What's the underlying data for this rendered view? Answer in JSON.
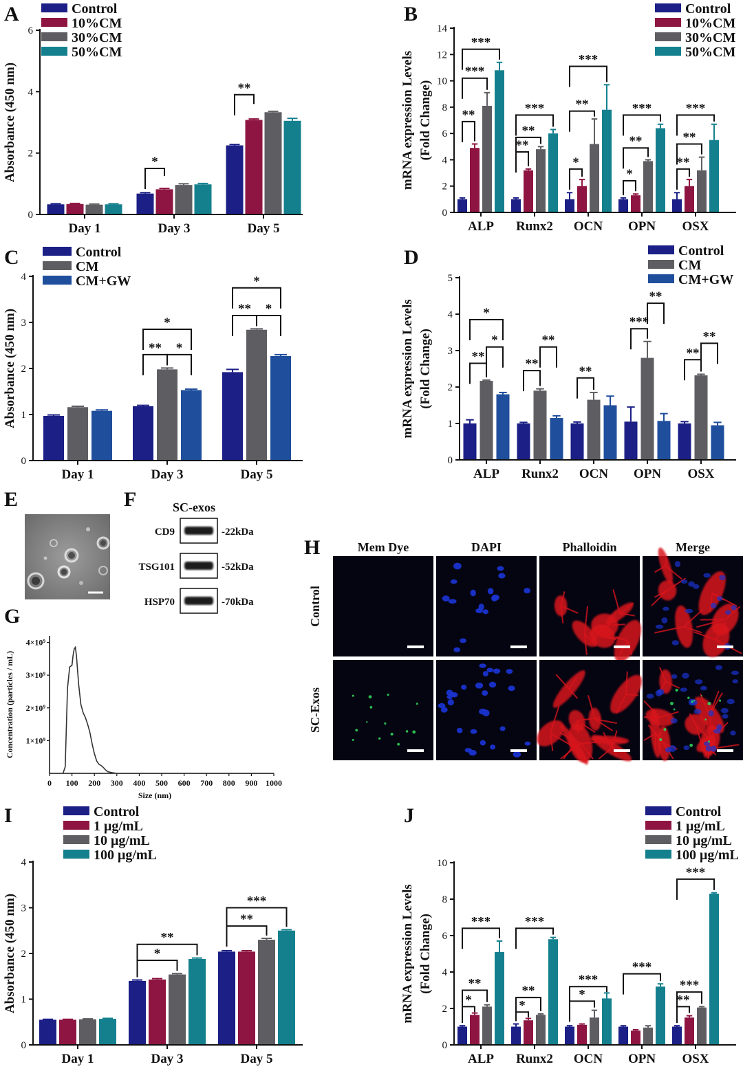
{
  "colors": {
    "navy": "#1b1f86",
    "crimson": "#8e1541",
    "gray": "#5e5e62",
    "teal": "#14808e",
    "blue": "#1f4e9c",
    "axis": "#111111",
    "red_stain": "#d8141c",
    "blue_stain": "#1a33cf",
    "green_stain": "#2fd35a"
  },
  "panel_letters": {
    "A": "A",
    "B": "B",
    "C": "C",
    "D": "D",
    "E": "E",
    "F": "F",
    "G": "G",
    "H": "H",
    "I": "I",
    "J": "J"
  },
  "chart_data": [
    {
      "id": "A",
      "type": "bar",
      "ylabel": "Absorbance (450 nm)",
      "ylim": [
        0,
        6
      ],
      "yticks": [
        0,
        2,
        4,
        6
      ],
      "categories": [
        "Day 1",
        "Day 3",
        "Day 5"
      ],
      "series": [
        {
          "name": "Control",
          "color": "navy",
          "values": [
            0.33,
            0.68,
            2.25
          ],
          "errors": [
            0.02,
            0.03,
            0.03
          ]
        },
        {
          "name": "10%CM",
          "color": "crimson",
          "values": [
            0.34,
            0.82,
            3.08
          ],
          "errors": [
            0.02,
            0.03,
            0.03
          ]
        },
        {
          "name": "30%CM",
          "color": "gray",
          "values": [
            0.32,
            0.96,
            3.33
          ],
          "errors": [
            0.02,
            0.04,
            0.03
          ]
        },
        {
          "name": "50%CM",
          "color": "teal",
          "values": [
            0.33,
            0.98,
            3.05
          ],
          "errors": [
            0.02,
            0.03,
            0.08
          ]
        }
      ],
      "significance": [
        {
          "cat": 1,
          "from": 0,
          "to": 1,
          "label": "*",
          "y": 1.5,
          "y2": 1.25
        },
        {
          "cat": 2,
          "from": 0,
          "to": 1,
          "label": "**",
          "y": 3.9,
          "y2": 3.6
        }
      ]
    },
    {
      "id": "B",
      "type": "bar",
      "ylabel": "mRNA expression Levels",
      "ylabel2": "(Fold Change)",
      "ylim": [
        0,
        14
      ],
      "yticks": [
        0,
        2,
        4,
        6,
        8,
        10,
        12,
        14
      ],
      "categories": [
        "ALP",
        "Runx2",
        "OCN",
        "OPN",
        "OSX"
      ],
      "series": [
        {
          "name": "Control",
          "color": "navy",
          "values": [
            1.0,
            1.0,
            1.0,
            1.0,
            1.0
          ],
          "errors": [
            0.1,
            0.1,
            0.5,
            0.1,
            0.5
          ]
        },
        {
          "name": "10%CM",
          "color": "crimson",
          "values": [
            4.9,
            3.2,
            2.0,
            1.3,
            2.0
          ],
          "errors": [
            0.3,
            0.1,
            0.5,
            0.1,
            0.5
          ]
        },
        {
          "name": "30%CM",
          "color": "gray",
          "values": [
            8.1,
            4.8,
            5.2,
            3.9,
            3.2
          ],
          "errors": [
            1.0,
            0.2,
            1.9,
            0.1,
            1.0
          ]
        },
        {
          "name": "50%CM",
          "color": "teal",
          "values": [
            10.8,
            6.0,
            7.8,
            6.4,
            5.5
          ],
          "errors": [
            0.6,
            0.3,
            1.9,
            0.3,
            1.2
          ]
        }
      ],
      "significance": [
        {
          "cat": 0,
          "from": 0,
          "to": 1,
          "label": "**",
          "y": 6.9
        },
        {
          "cat": 0,
          "from": 0,
          "to": 2,
          "label": "***",
          "y": 10.2
        },
        {
          "cat": 0,
          "from": 0,
          "to": 3,
          "label": "***",
          "y": 12.4
        },
        {
          "cat": 1,
          "from": 0,
          "to": 1,
          "label": "**",
          "y": 4.6
        },
        {
          "cat": 1,
          "from": 0,
          "to": 2,
          "label": "**",
          "y": 5.7
        },
        {
          "cat": 1,
          "from": 0,
          "to": 3,
          "label": "***",
          "y": 7.4
        },
        {
          "cat": 2,
          "from": 0,
          "to": 1,
          "label": "*",
          "y": 3.3
        },
        {
          "cat": 2,
          "from": 0,
          "to": 2,
          "label": "**",
          "y": 7.7
        },
        {
          "cat": 2,
          "from": 0,
          "to": 3,
          "label": "***",
          "y": 11.1
        },
        {
          "cat": 3,
          "from": 0,
          "to": 1,
          "label": "*",
          "y": 2.4
        },
        {
          "cat": 3,
          "from": 0,
          "to": 2,
          "label": "**",
          "y": 4.9
        },
        {
          "cat": 3,
          "from": 0,
          "to": 3,
          "label": "***",
          "y": 7.4
        },
        {
          "cat": 4,
          "from": 0,
          "to": 1,
          "label": "**",
          "y": 3.3
        },
        {
          "cat": 4,
          "from": 0,
          "to": 2,
          "label": "**",
          "y": 5.2
        },
        {
          "cat": 4,
          "from": 0,
          "to": 3,
          "label": "***",
          "y": 7.4
        }
      ]
    },
    {
      "id": "C",
      "type": "bar",
      "ylabel": "Absorbance (450 nm)",
      "ylim": [
        0,
        4
      ],
      "yticks": [
        0,
        1,
        2,
        3,
        4
      ],
      "categories": [
        "Day 1",
        "Day 3",
        "Day 5"
      ],
      "series": [
        {
          "name": "Control",
          "color": "navy",
          "values": [
            0.97,
            1.18,
            1.92
          ],
          "errors": [
            0.02,
            0.02,
            0.06
          ]
        },
        {
          "name": "CM",
          "color": "gray",
          "values": [
            1.16,
            1.98,
            2.84
          ],
          "errors": [
            0.02,
            0.03,
            0.02
          ]
        },
        {
          "name": "CM+GW",
          "color": "blue",
          "values": [
            1.08,
            1.53,
            2.27
          ],
          "errors": [
            0.02,
            0.02,
            0.03
          ]
        }
      ],
      "significance": [
        {
          "cat": 1,
          "from": 0,
          "to": 1,
          "label": "**",
          "y": 2.3
        },
        {
          "cat": 1,
          "from": 1,
          "to": 2,
          "label": "*",
          "y": 2.3
        },
        {
          "cat": 1,
          "from": 0,
          "to": 2,
          "label": "*",
          "y": 2.85
        },
        {
          "cat": 2,
          "from": 0,
          "to": 1,
          "label": "**",
          "y": 3.15
        },
        {
          "cat": 2,
          "from": 1,
          "to": 2,
          "label": "*",
          "y": 3.15
        },
        {
          "cat": 2,
          "from": 0,
          "to": 2,
          "label": "*",
          "y": 3.75
        }
      ]
    },
    {
      "id": "D",
      "type": "bar",
      "ylabel": "mRNA expression Levels",
      "ylabel2": "(Fold Change)",
      "ylim": [
        0,
        5
      ],
      "yticks": [
        0,
        1,
        2,
        3,
        4,
        5
      ],
      "categories": [
        "ALP",
        "Runx2",
        "OCN",
        "OPN",
        "OSX"
      ],
      "series": [
        {
          "name": "Control",
          "color": "navy",
          "values": [
            1.0,
            1.0,
            1.0,
            1.05,
            1.0
          ],
          "errors": [
            0.1,
            0.03,
            0.04,
            0.4,
            0.05
          ]
        },
        {
          "name": "CM",
          "color": "gray",
          "values": [
            2.17,
            1.9,
            1.65,
            2.8,
            2.32
          ],
          "errors": [
            0.02,
            0.05,
            0.2,
            0.45,
            0.03
          ]
        },
        {
          "name": "CM+GW",
          "color": "blue",
          "values": [
            1.8,
            1.15,
            1.5,
            1.07,
            0.95
          ],
          "errors": [
            0.05,
            0.06,
            0.25,
            0.2,
            0.08
          ]
        }
      ],
      "significance": [
        {
          "cat": 0,
          "from": 0,
          "to": 1,
          "label": "**",
          "y": 2.65
        },
        {
          "cat": 0,
          "from": 1,
          "to": 2,
          "label": "*",
          "y": 3.1
        },
        {
          "cat": 0,
          "from": 0,
          "to": 2,
          "label": "*",
          "y": 3.85
        },
        {
          "cat": 1,
          "from": 0,
          "to": 1,
          "label": "**",
          "y": 2.45
        },
        {
          "cat": 1,
          "from": 1,
          "to": 2,
          "label": "**",
          "y": 3.1
        },
        {
          "cat": 2,
          "from": 0,
          "to": 1,
          "label": "**",
          "y": 2.25
        },
        {
          "cat": 3,
          "from": 0,
          "to": 1,
          "label": "***",
          "y": 3.6
        },
        {
          "cat": 3,
          "from": 1,
          "to": 2,
          "label": "**",
          "y": 4.3
        },
        {
          "cat": 4,
          "from": 0,
          "to": 1,
          "label": "**",
          "y": 2.75
        },
        {
          "cat": 4,
          "from": 1,
          "to": 2,
          "label": "**",
          "y": 3.2
        }
      ]
    },
    {
      "id": "I",
      "type": "bar",
      "ylabel": "Absorbance (450 nm)",
      "ylim": [
        0,
        4
      ],
      "yticks": [
        0,
        1,
        2,
        3,
        4
      ],
      "categories": [
        "Day 1",
        "Day 3",
        "Day 5"
      ],
      "series": [
        {
          "name": "Control",
          "color": "navy",
          "values": [
            0.55,
            1.4,
            2.04
          ],
          "errors": [
            0.01,
            0.02,
            0.02
          ]
        },
        {
          "name": "1 μg/mL",
          "color": "crimson",
          "values": [
            0.55,
            1.43,
            2.04
          ],
          "errors": [
            0.01,
            0.02,
            0.02
          ]
        },
        {
          "name": "10 μg/mL",
          "color": "gray",
          "values": [
            0.56,
            1.54,
            2.3
          ],
          "errors": [
            0.01,
            0.02,
            0.03
          ]
        },
        {
          "name": "100 μg/mL",
          "color": "teal",
          "values": [
            0.57,
            1.88,
            2.5
          ],
          "errors": [
            0.01,
            0.02,
            0.02
          ]
        }
      ],
      "significance": [
        {
          "cat": 1,
          "from": 0,
          "to": 2,
          "label": "*",
          "y": 1.85
        },
        {
          "cat": 1,
          "from": 0,
          "to": 3,
          "label": "**",
          "y": 2.2
        },
        {
          "cat": 2,
          "from": 0,
          "to": 2,
          "label": "**",
          "y": 2.6
        },
        {
          "cat": 2,
          "from": 0,
          "to": 3,
          "label": "***",
          "y": 3.0
        }
      ]
    },
    {
      "id": "J",
      "type": "bar",
      "ylabel": "mRNA expression Levels",
      "ylabel2": "(Fold Change)",
      "ylim": [
        0,
        10
      ],
      "yticks": [
        0,
        2,
        4,
        6,
        8,
        10
      ],
      "categories": [
        "ALP",
        "Runx2",
        "OCN",
        "OPN",
        "OSX"
      ],
      "series": [
        {
          "name": "Control",
          "color": "navy",
          "values": [
            1.0,
            1.0,
            1.0,
            1.0,
            1.0
          ],
          "errors": [
            0.05,
            0.15,
            0.05,
            0.05,
            0.05
          ]
        },
        {
          "name": "1 μg/mL",
          "color": "crimson",
          "values": [
            1.65,
            1.35,
            1.1,
            0.78,
            1.5
          ],
          "errors": [
            0.1,
            0.1,
            0.05,
            0.05,
            0.1
          ]
        },
        {
          "name": "10 μg/mL",
          "color": "gray",
          "values": [
            2.1,
            1.65,
            1.5,
            0.95,
            2.05
          ],
          "errors": [
            0.1,
            0.05,
            0.4,
            0.1,
            0.05
          ]
        },
        {
          "name": "100 μg/mL",
          "color": "teal",
          "values": [
            5.1,
            5.8,
            2.55,
            3.2,
            8.3
          ],
          "errors": [
            0.6,
            0.1,
            0.3,
            0.15,
            0.05
          ]
        }
      ],
      "significance": [
        {
          "cat": 0,
          "from": 0,
          "to": 1,
          "label": "*",
          "y": 2.1
        },
        {
          "cat": 0,
          "from": 0,
          "to": 2,
          "label": "**",
          "y": 3.0
        },
        {
          "cat": 0,
          "from": 0,
          "to": 3,
          "label": "***",
          "y": 6.4
        },
        {
          "cat": 1,
          "from": 0,
          "to": 1,
          "label": "*",
          "y": 1.8
        },
        {
          "cat": 1,
          "from": 0,
          "to": 2,
          "label": "**",
          "y": 2.6
        },
        {
          "cat": 1,
          "from": 0,
          "to": 3,
          "label": "***",
          "y": 6.4
        },
        {
          "cat": 2,
          "from": 0,
          "to": 2,
          "label": "*",
          "y": 2.4
        },
        {
          "cat": 2,
          "from": 0,
          "to": 3,
          "label": "***",
          "y": 3.2
        },
        {
          "cat": 3,
          "from": 0,
          "to": 3,
          "label": "***",
          "y": 3.9
        },
        {
          "cat": 4,
          "from": 0,
          "to": 1,
          "label": "**",
          "y": 2.1
        },
        {
          "cat": 4,
          "from": 0,
          "to": 2,
          "label": "***",
          "y": 2.9
        },
        {
          "cat": 4,
          "from": 0,
          "to": 3,
          "label": "***",
          "y": 9.1
        }
      ]
    },
    {
      "id": "G",
      "type": "line",
      "xlabel": "Size (nm)",
      "ylabel": "Concentration (particles / mL)",
      "xlim": [
        0,
        1000
      ],
      "xticks": [
        0,
        100,
        200,
        300,
        400,
        500,
        600,
        700,
        800,
        900,
        1000
      ],
      "ylim": [
        0,
        4.2
      ],
      "yticks": [
        1,
        2,
        3,
        4
      ],
      "ytick_labels": [
        "1×10⁹",
        "2×10⁹",
        "3×10⁹",
        "4×10⁹"
      ],
      "x": [
        60,
        70,
        80,
        90,
        100,
        105,
        110,
        115,
        120,
        130,
        140,
        150,
        160,
        170,
        180,
        190,
        200,
        210,
        220,
        230,
        240,
        250,
        260,
        280,
        300,
        1000
      ],
      "y": [
        0,
        0.2,
        2.6,
        3.25,
        3.3,
        3.6,
        3.8,
        3.85,
        3.6,
        2.7,
        2.1,
        1.85,
        1.7,
        1.5,
        1.25,
        0.9,
        0.6,
        0.38,
        0.28,
        0.24,
        0.18,
        0.1,
        0.05,
        0.02,
        0.0,
        0.0
      ]
    }
  ],
  "panel_E": {
    "label": "E"
  },
  "panel_F": {
    "title": "SC-exos",
    "rows": [
      {
        "name": "CD9",
        "kda": "-22kDa"
      },
      {
        "name": "TSG101",
        "kda": "-52kDa"
      },
      {
        "name": "HSP70",
        "kda": "-70kDa"
      }
    ]
  },
  "panel_H": {
    "columns": [
      "Mem Dye",
      "DAPI",
      "Phalloidin",
      "Merge"
    ],
    "rows": [
      "Control",
      "SC-Exos"
    ]
  }
}
